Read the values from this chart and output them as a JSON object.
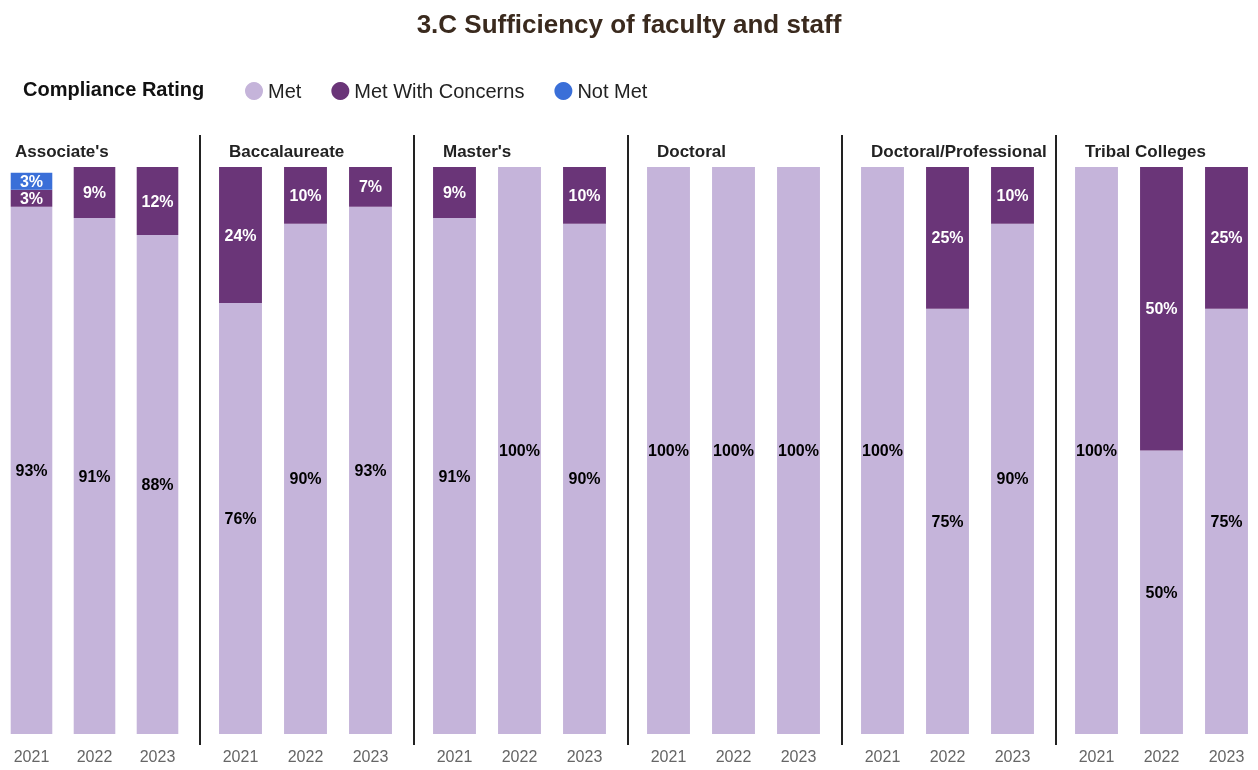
{
  "chart_data": [
    {
      "type": "other",
      "title": "3.C Sufficiency of faculty and staff"
    },
    {
      "type": "bar",
      "title": "Associate's",
      "stacked": true,
      "ylim": [
        0,
        100
      ],
      "tick_labels": "x",
      "legend": "top",
      "legend_title": "Compliance Rating",
      "categories": [
        "2021",
        "2022",
        "2023"
      ],
      "series": [
        {
          "name": "Met",
          "color": "#c5b4da",
          "values": [
            93,
            91,
            88
          ],
          "value_labels": [
            "93%",
            "91%",
            "88%"
          ]
        },
        {
          "name": "Met With Concerns",
          "color": "#6a3578",
          "values": [
            3,
            9,
            12
          ],
          "value_labels": [
            "3%",
            "9%",
            "12%"
          ]
        },
        {
          "name": "Not Met",
          "color": "#3a6fd8",
          "values": [
            3,
            null,
            null
          ],
          "value_labels": [
            "3%",
            null,
            null
          ]
        }
      ]
    },
    {
      "type": "bar",
      "title": "Baccalaureate",
      "stacked": true,
      "ylim": [
        0,
        100
      ],
      "tick_labels": "x",
      "categories": [
        "2021",
        "2022",
        "2023"
      ],
      "series": [
        {
          "color": "#c5b4da",
          "values": [
            76,
            90,
            93
          ],
          "value_labels": [
            "76%",
            "90%",
            "93%"
          ]
        },
        {
          "color": "#6a3578",
          "values": [
            24,
            10,
            7
          ],
          "value_labels": [
            "24%",
            "10%",
            "7%"
          ]
        }
      ]
    },
    {
      "type": "bar",
      "title": "Master's",
      "stacked": true,
      "ylim": [
        0,
        100
      ],
      "tick_labels": "x",
      "categories": [
        "2021",
        "2022",
        "2023"
      ],
      "series": [
        {
          "color": "#c5b4da",
          "values": [
            91,
            100,
            90
          ],
          "value_labels": [
            "91%",
            "100%",
            "90%"
          ]
        },
        {
          "color": "#6a3578",
          "values": [
            9,
            null,
            10
          ],
          "value_labels": [
            "9%",
            null,
            "10%"
          ]
        }
      ]
    },
    {
      "type": "bar",
      "title": "Doctoral",
      "stacked": true,
      "ylim": [
        0,
        100
      ],
      "tick_labels": "x",
      "categories": [
        "2021",
        "2022",
        "2023"
      ],
      "series": [
        {
          "color": "#c5b4da",
          "values": [
            100,
            100,
            100
          ],
          "value_labels": [
            "100%",
            "100%",
            "100%"
          ]
        }
      ]
    },
    {
      "type": "bar",
      "title": "Doctoral/Professional",
      "stacked": true,
      "ylim": [
        0,
        100
      ],
      "tick_labels": "x",
      "categories": [
        "2021",
        "2022",
        "2023"
      ],
      "series": [
        {
          "color": "#c5b4da",
          "values": [
            100,
            75,
            90
          ],
          "value_labels": [
            "100%",
            "75%",
            "90%"
          ]
        },
        {
          "color": "#6a3578",
          "values": [
            null,
            25,
            10
          ],
          "value_labels": [
            null,
            "25%",
            "10%"
          ]
        }
      ]
    },
    {
      "type": "bar",
      "title": "Tribal Colleges",
      "stacked": true,
      "ylim": [
        0,
        100
      ],
      "tick_labels": "x",
      "categories": [
        "2021",
        "2022",
        "2023"
      ],
      "series": [
        {
          "color": "#c5b4da",
          "values": [
            100,
            50,
            75
          ],
          "value_labels": [
            "100%",
            "50%",
            "75%"
          ]
        },
        {
          "color": "#6a3578",
          "values": [
            null,
            50,
            25
          ],
          "value_labels": [
            null,
            "50%",
            "25%"
          ]
        }
      ]
    }
  ]
}
